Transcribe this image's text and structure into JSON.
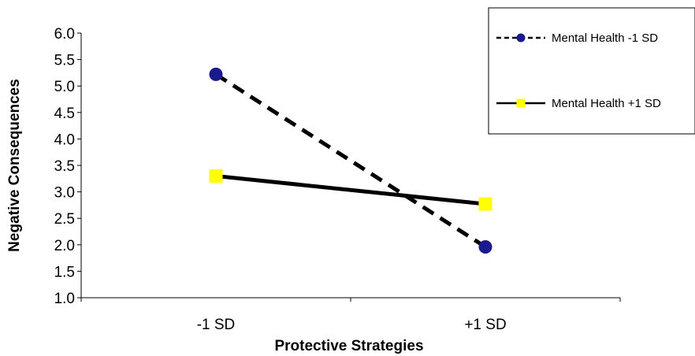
{
  "chart_data": {
    "type": "line",
    "categories": [
      "-1 SD",
      "+1 SD"
    ],
    "series": [
      {
        "name": "Mental Health -1 SD",
        "values": [
          5.22,
          1.96
        ],
        "line_style": "dashed",
        "marker": "circle",
        "marker_color": "#1A1A8C"
      },
      {
        "name": "Mental Health +1 SD",
        "values": [
          3.3,
          2.77
        ],
        "line_style": "solid",
        "marker": "square",
        "marker_color": "#FFFF00"
      }
    ],
    "title": "",
    "xlabel": "Protective Strategies",
    "ylabel": "Negative Consequences",
    "ylim": [
      1.0,
      6.0
    ],
    "yticks": [
      "1.0",
      "1.5",
      "2.0",
      "2.5",
      "3.0",
      "3.5",
      "4.0",
      "4.5",
      "5.0",
      "5.5",
      "6.0"
    ],
    "grid": false,
    "legend_position": "top-right",
    "line_color": "#000000"
  }
}
